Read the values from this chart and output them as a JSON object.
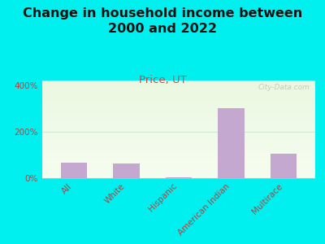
{
  "title": "Change in household income between\n2000 and 2022",
  "subtitle": "Price, UT",
  "categories": [
    "All",
    "White",
    "Hispanic",
    "American Indian",
    "Multirace"
  ],
  "values": [
    65,
    62,
    2,
    300,
    105
  ],
  "bar_color": "#c4a8d0",
  "title_fontsize": 11.5,
  "subtitle_fontsize": 9.5,
  "subtitle_color": "#cc4444",
  "tick_label_color": "#aa4444",
  "tick_label_fontsize": 7.5,
  "background_outer": "#00f0f0",
  "ylim": [
    0,
    420
  ],
  "yticks": [
    0,
    200,
    400
  ],
  "ytick_labels": [
    "0%",
    "200%",
    "400%"
  ],
  "watermark": "City-Data.com"
}
